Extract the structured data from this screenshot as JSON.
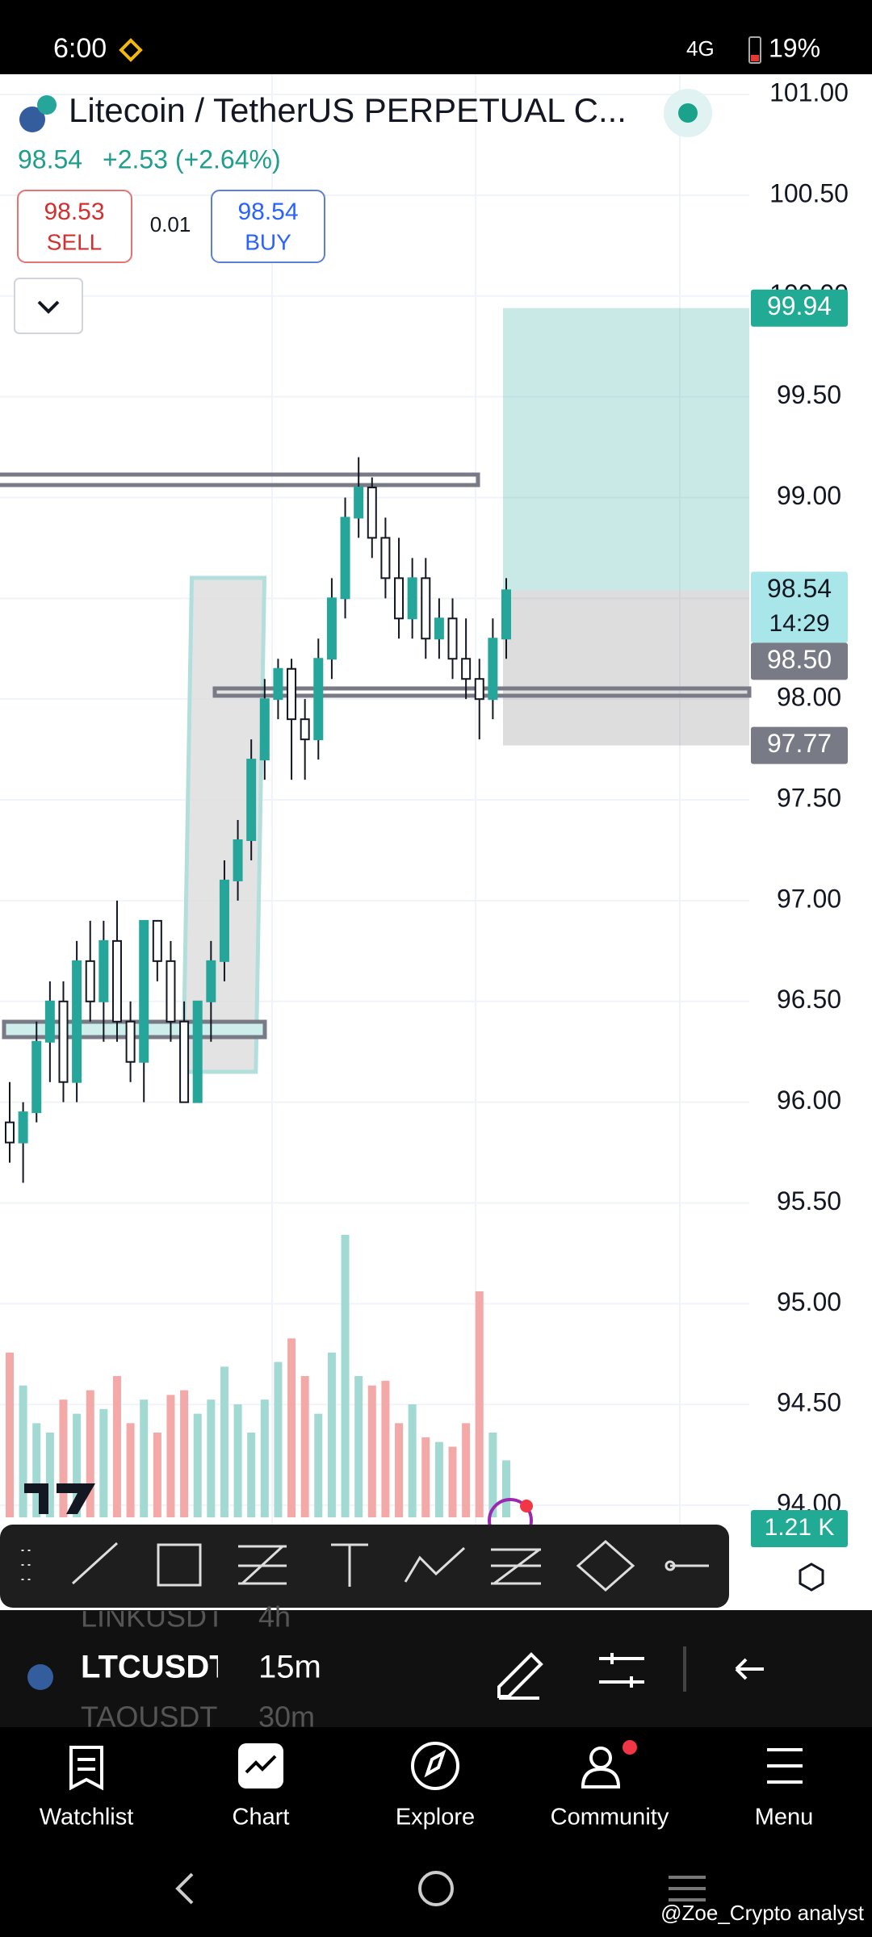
{
  "status_bar": {
    "time": "6:00",
    "network": "4G",
    "battery": "19%"
  },
  "header": {
    "title": "Litecoin / TetherUS PERPETUAL C...",
    "price": "98.54",
    "change": "+2.53 (+2.64%)",
    "sell_price": "98.53",
    "sell_label": "SELL",
    "spread": "0.01",
    "buy_price": "98.54",
    "buy_label": "BUY"
  },
  "chart_data": {
    "type": "candlestick",
    "open": [
      95.9,
      95.8,
      95.95,
      96.3,
      96.5,
      96.1,
      96.7,
      96.5,
      96.8,
      96.4,
      96.2,
      96.9,
      96.7,
      96.4,
      96.0,
      96.5,
      96.7,
      97.1,
      97.3,
      97.7,
      98.0,
      98.15,
      97.9,
      97.8,
      98.2,
      98.5,
      98.9,
      99.05,
      98.8,
      98.6,
      98.4,
      98.6,
      98.3,
      98.4,
      98.2,
      98.1,
      98.0,
      98.3
    ],
    "high": [
      96.1,
      96.0,
      96.4,
      96.6,
      96.6,
      96.8,
      96.9,
      96.9,
      97.0,
      96.5,
      96.9,
      96.9,
      96.8,
      96.5,
      96.5,
      96.8,
      97.2,
      97.4,
      97.8,
      98.1,
      98.2,
      98.2,
      98.0,
      98.3,
      98.6,
      99.0,
      99.2,
      99.1,
      98.9,
      98.8,
      98.7,
      98.7,
      98.5,
      98.5,
      98.4,
      98.2,
      98.4,
      98.6
    ],
    "low": [
      95.7,
      95.6,
      95.9,
      96.1,
      96.0,
      96.0,
      96.4,
      96.3,
      96.3,
      96.1,
      96.0,
      96.6,
      96.3,
      96.0,
      96.0,
      96.3,
      96.6,
      97.0,
      97.2,
      97.6,
      97.9,
      97.6,
      97.6,
      97.7,
      98.1,
      98.4,
      98.8,
      98.7,
      98.5,
      98.3,
      98.3,
      98.2,
      98.2,
      98.1,
      98.0,
      97.8,
      97.9,
      98.2
    ],
    "close": [
      95.8,
      95.95,
      96.3,
      96.5,
      96.1,
      96.7,
      96.5,
      96.8,
      96.4,
      96.2,
      96.9,
      96.7,
      96.4,
      96.0,
      96.5,
      96.7,
      97.1,
      97.3,
      97.7,
      98.0,
      98.15,
      97.9,
      97.8,
      98.2,
      98.5,
      98.9,
      99.05,
      98.8,
      98.6,
      98.4,
      98.6,
      98.3,
      98.4,
      98.2,
      98.1,
      98.0,
      98.3,
      98.54
    ],
    "volume": [
      3.5,
      2.8,
      2.0,
      1.8,
      2.5,
      2.2,
      2.7,
      2.3,
      3.0,
      2.0,
      2.5,
      1.8,
      2.6,
      2.7,
      2.2,
      2.5,
      3.2,
      2.4,
      1.8,
      2.5,
      3.3,
      3.8,
      3.0,
      2.2,
      3.5,
      6.0,
      3.0,
      2.8,
      2.9,
      2.0,
      2.4,
      1.7,
      1.6,
      1.5,
      2.0,
      4.8,
      1.8,
      1.21
    ],
    "up_color": "#26a69a",
    "down_color": "#ffffff",
    "up_volume_color": "#a3d9d3",
    "down_volume_color": "#f4a9a9",
    "ylim": [
      93.48,
      101.1
    ],
    "y2lim": [
      0,
      12
    ],
    "yticks": [
      {
        "value": 94,
        "label": "94.00"
      },
      {
        "value": 94.5,
        "label": "94.50"
      },
      {
        "value": 95,
        "label": "95.00"
      },
      {
        "value": 95.5,
        "label": "95.50"
      },
      {
        "value": 96,
        "label": "96.00"
      },
      {
        "value": 96.5,
        "label": "96.50"
      },
      {
        "value": 97,
        "label": "97.00"
      },
      {
        "value": 97.5,
        "label": "97.50"
      },
      {
        "value": 98,
        "label": "98.00"
      },
      {
        "value": 98.5,
        "label": "98.50"
      },
      {
        "value": 99,
        "label": "99.00"
      },
      {
        "value": 99.5,
        "label": "99.50"
      },
      {
        "value": 100,
        "label": "100.00"
      },
      {
        "value": 100.5,
        "label": "100.50"
      },
      {
        "value": 101,
        "label": "101.00"
      }
    ],
    "grid": true,
    "price_tags": [
      {
        "value": 99.94,
        "label": "99.94",
        "color": "#22ab94"
      },
      {
        "value": 98.54,
        "label": "98.54",
        "color": "#a8e6ea"
      },
      {
        "value": 98.5,
        "label": "98.50",
        "color": "#787b86"
      },
      {
        "value": 97.77,
        "label": "97.77",
        "color": "#787b86"
      }
    ],
    "countdown": "14:29",
    "volume_tag": {
      "value": 1.21,
      "label": "1.21 K",
      "color": "#22ab94"
    }
  },
  "symbols": [
    {
      "symbol": "LINKUSDT",
      "interval": "4h"
    },
    {
      "symbol": "LTCUSDT",
      "interval": "15m"
    },
    {
      "symbol": "TAOUSDT",
      "interval": "30m"
    }
  ],
  "nav": [
    "Watchlist",
    "Chart",
    "Explore",
    "Community",
    "Menu"
  ],
  "watermark": "@Zoe_Crypto analyst"
}
